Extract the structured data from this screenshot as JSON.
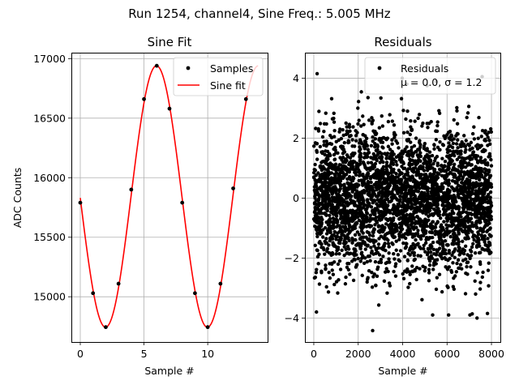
{
  "figure": {
    "suptitle": "Run 1254, channel4, Sine Freq.: 5.005 MHz"
  },
  "chart_data": [
    {
      "type": "line",
      "title": "Sine Fit",
      "xlabel": "Sample #",
      "ylabel": "ADC Counts",
      "xlim": [
        -0.7,
        14.7
      ],
      "ylim": [
        14620,
        17050
      ],
      "xticks": [
        0,
        5,
        10
      ],
      "yticks": [
        15000,
        15500,
        16000,
        16500,
        17000
      ],
      "grid": true,
      "legend_position": "top-right",
      "series": [
        {
          "name": "Samples",
          "style": "markers",
          "color": "#000000",
          "x": [
            0,
            1,
            2,
            3,
            4,
            5,
            6,
            7,
            8,
            9,
            10,
            11,
            12,
            13
          ],
          "y": [
            15790,
            15030,
            14745,
            15110,
            15900,
            16660,
            16940,
            16580,
            15790,
            15030,
            14745,
            15110,
            15910,
            16660
          ]
        },
        {
          "name": "Sine fit",
          "style": "line",
          "color": "#ff0000",
          "model": {
            "offset": 15842,
            "amplitude": 1098,
            "period": 7.992,
            "peak_at": 5.98
          },
          "x_range": [
            0,
            13.95
          ]
        }
      ]
    },
    {
      "type": "scatter",
      "title": "Residuals",
      "xlabel": "Sample #",
      "ylabel": "",
      "xlim": [
        -400,
        8400
      ],
      "ylim": [
        -4.8,
        4.85
      ],
      "xticks": [
        0,
        2000,
        4000,
        6000,
        8000
      ],
      "yticks": [
        -4,
        -2,
        0,
        2,
        4
      ],
      "grid": true,
      "legend_position": "top-right",
      "series": [
        {
          "name": "Residuals",
          "color": "#000000",
          "distribution": {
            "count": 8000,
            "mean": 0.0,
            "std": 1.2,
            "x_min": 0,
            "x_max": 7999
          },
          "outliers": [
            {
              "x": 150,
              "y": 4.15
            },
            {
              "x": 2650,
              "y": -4.42
            },
            {
              "x": 3980,
              "y": 4.0
            },
            {
              "x": 7350,
              "y": -4.0
            },
            {
              "x": 7580,
              "y": 4.05
            },
            {
              "x": 120,
              "y": -3.8
            },
            {
              "x": 7820,
              "y": -3.85
            },
            {
              "x": 5100,
              "y": 3.75
            }
          ]
        }
      ],
      "legend_lines": [
        "Residuals",
        "μ = 0.0, σ = 1.2"
      ]
    }
  ]
}
